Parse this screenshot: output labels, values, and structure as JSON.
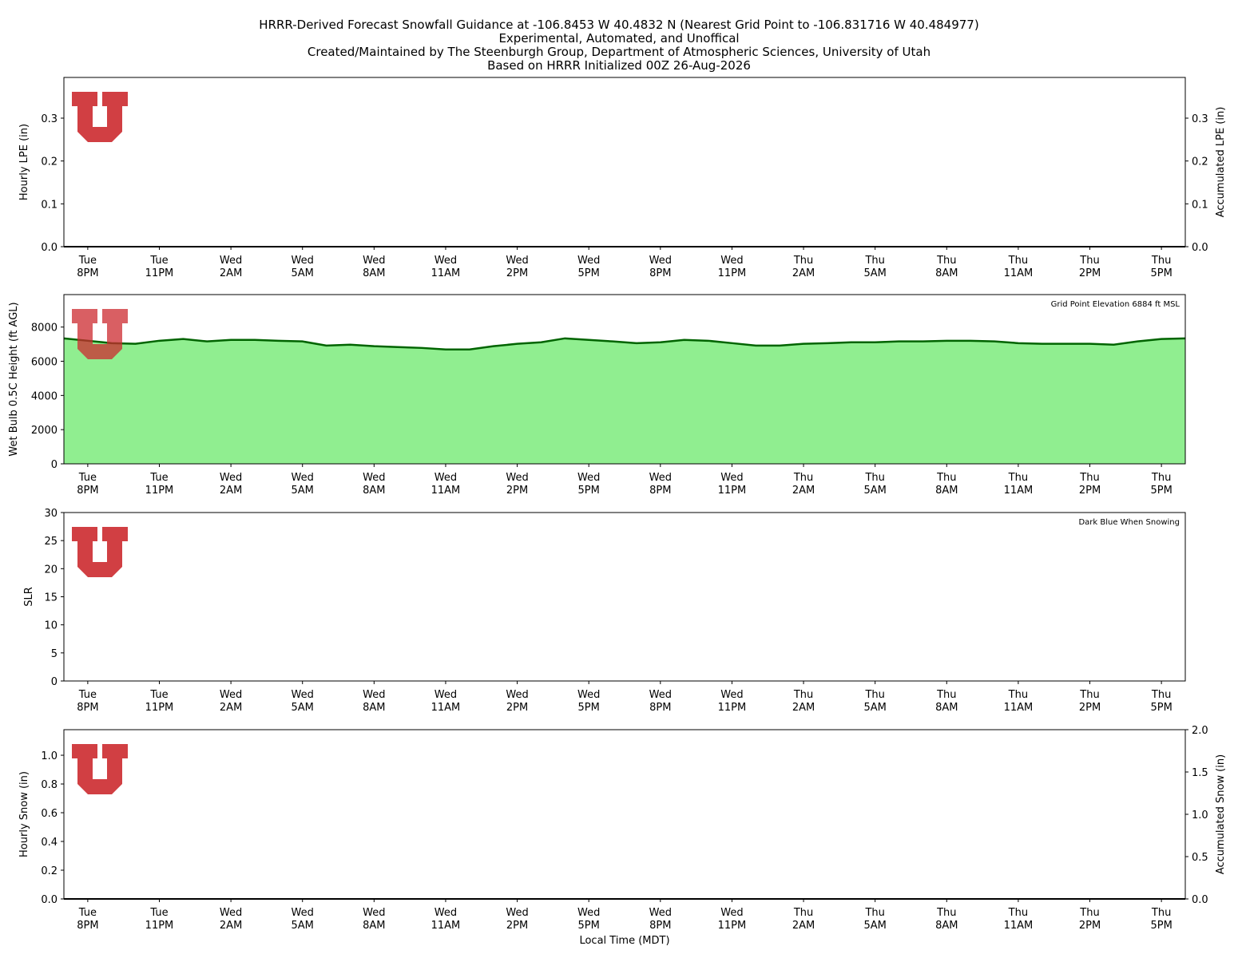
{
  "title": [
    "HRRR-Derived Forecast Snowfall Guidance at -106.8453 W 40.4832 N (Nearest Grid Point to -106.831716 W 40.484977)",
    "Experimental, Automated, and Unoffical",
    "Created/Maintained by The Steenburgh Group, Department of Atmospheric Sciences, University of Utah",
    "Based on HRRR Initialized 00Z 26-Aug-2026"
  ],
  "chart_data": [
    {
      "type": "bar",
      "ylabel": "Hourly LPE (in)",
      "y2label": "Accumulated LPE (in)",
      "categories": [
        null,
        "Tue 8PM",
        null,
        null,
        "Tue 11PM",
        null,
        null,
        "Wed 2AM",
        null,
        null,
        "Wed 5AM",
        null,
        null,
        "Wed 8AM",
        null,
        null,
        "Wed 11AM",
        null,
        null,
        "Wed 2PM",
        null,
        null,
        "Wed 5PM",
        null,
        null,
        "Wed 8PM",
        null,
        null,
        "Wed 11PM",
        null,
        null,
        "Thu 2AM",
        null,
        null,
        "Thu 5AM",
        null,
        null,
        "Thu 8AM",
        null,
        null,
        "Thu 11AM",
        null,
        null,
        "Thu 2PM",
        null,
        null,
        "Thu 5PM",
        null
      ],
      "ylim": [
        0,
        0.395
      ],
      "yticks": [
        {
          "value": 0,
          "label": "0.0"
        },
        {
          "value": 0.1,
          "label": "0.1"
        },
        {
          "value": 0.2,
          "label": "0.2"
        },
        {
          "value": 0.3,
          "label": "0.3"
        }
      ],
      "y2lim": [
        0,
        0.395
      ],
      "y2ticks": [
        {
          "value": 0,
          "label": "0.0"
        },
        {
          "value": 0.1,
          "label": "0.1"
        },
        {
          "value": 0.2,
          "label": "0.2"
        },
        {
          "value": 0.3,
          "label": "0.3"
        }
      ],
      "series": [
        {
          "type": "bar",
          "color": "#1f77b4",
          "values": [
            0,
            0,
            0,
            0,
            0,
            0,
            0,
            0,
            0,
            0,
            0,
            0,
            0,
            0,
            0,
            0,
            0,
            0,
            0,
            0,
            0,
            0,
            0,
            0,
            0,
            0,
            0,
            0,
            0,
            0,
            0,
            0,
            0,
            0,
            0,
            0,
            0,
            0,
            0,
            0,
            0,
            0,
            0,
            0,
            0,
            0,
            0,
            0
          ]
        },
        {
          "type": "line",
          "axis": "y2",
          "color": "#000000",
          "values": [
            0,
            0,
            0,
            0,
            0,
            0,
            0,
            0,
            0,
            0,
            0,
            0,
            0,
            0,
            0,
            0,
            0,
            0,
            0,
            0,
            0,
            0,
            0,
            0,
            0,
            0,
            0,
            0,
            0,
            0,
            0,
            0,
            0,
            0,
            0,
            0,
            0,
            0,
            0,
            0,
            0,
            0,
            0,
            0,
            0,
            0,
            0,
            0
          ]
        }
      ]
    },
    {
      "type": "area",
      "ylabel": "Wet Bulb 0.5C Height (ft AGL)",
      "annotation": "Grid Point Elevation 6884 ft MSL",
      "categories": [
        null,
        "Tue 8PM",
        null,
        null,
        "Tue 11PM",
        null,
        null,
        "Wed 2AM",
        null,
        null,
        "Wed 5AM",
        null,
        null,
        "Wed 8AM",
        null,
        null,
        "Wed 11AM",
        null,
        null,
        "Wed 2PM",
        null,
        null,
        "Wed 5PM",
        null,
        null,
        "Wed 8PM",
        null,
        null,
        "Wed 11PM",
        null,
        null,
        "Thu 2AM",
        null,
        null,
        "Thu 5AM",
        null,
        null,
        "Thu 8AM",
        null,
        null,
        "Thu 11AM",
        null,
        null,
        "Thu 2PM",
        null,
        null,
        "Thu 5PM",
        null
      ],
      "ylim": [
        0,
        9900
      ],
      "yticks": [
        0,
        2000,
        4000,
        6000,
        8000
      ],
      "series": [
        {
          "type": "area",
          "color": "#006400",
          "fill": "#90ee90",
          "values": [
            7340,
            7200,
            7060,
            7020,
            7200,
            7300,
            7160,
            7250,
            7250,
            7200,
            7160,
            6920,
            6970,
            6880,
            6830,
            6780,
            6690,
            6690,
            6880,
            7020,
            7110,
            7340,
            7250,
            7160,
            7060,
            7110,
            7250,
            7200,
            7060,
            6920,
            6920,
            7020,
            7060,
            7110,
            7110,
            7160,
            7160,
            7200,
            7200,
            7160,
            7060,
            7020,
            7020,
            7020,
            6970,
            7160,
            7300,
            7340
          ]
        }
      ]
    },
    {
      "type": "line",
      "ylabel": "SLR",
      "annotation": "Dark Blue When Snowing",
      "categories": [
        null,
        "Tue 8PM",
        null,
        null,
        "Tue 11PM",
        null,
        null,
        "Wed 2AM",
        null,
        null,
        "Wed 5AM",
        null,
        null,
        "Wed 8AM",
        null,
        null,
        "Wed 11AM",
        null,
        null,
        "Wed 2PM",
        null,
        null,
        "Wed 5PM",
        null,
        null,
        "Wed 8PM",
        null,
        null,
        "Wed 11PM",
        null,
        null,
        "Thu 2AM",
        null,
        null,
        "Thu 5AM",
        null,
        null,
        "Thu 8AM",
        null,
        null,
        "Thu 11AM",
        null,
        null,
        "Thu 2PM",
        null,
        null,
        "Thu 5PM",
        null
      ],
      "ylim": [
        0,
        30
      ],
      "yticks": [
        0,
        5,
        10,
        15,
        20,
        25,
        30
      ],
      "series": []
    },
    {
      "type": "bar",
      "ylabel": "Hourly Snow (in)",
      "y2label": "Accumulated Snow (in)",
      "xlabel": "Local Time (MDT)",
      "categories": [
        null,
        "Tue 8PM",
        null,
        null,
        "Tue 11PM",
        null,
        null,
        "Wed 2AM",
        null,
        null,
        "Wed 5AM",
        null,
        null,
        "Wed 8AM",
        null,
        null,
        "Wed 11AM",
        null,
        null,
        "Wed 2PM",
        null,
        null,
        "Wed 5PM",
        null,
        null,
        "Wed 8PM",
        null,
        null,
        "Wed 11PM",
        null,
        null,
        "Thu 2AM",
        null,
        null,
        "Thu 5AM",
        null,
        null,
        "Thu 8AM",
        null,
        null,
        "Thu 11AM",
        null,
        null,
        "Thu 2PM",
        null,
        null,
        "Thu 5PM",
        null
      ],
      "ylim": [
        0,
        1.178
      ],
      "yticks": [
        {
          "value": 0,
          "label": "0.0"
        },
        {
          "value": 0.2,
          "label": "0.2"
        },
        {
          "value": 0.4,
          "label": "0.4"
        },
        {
          "value": 0.6,
          "label": "0.6"
        },
        {
          "value": 0.8,
          "label": "0.8"
        },
        {
          "value": 1,
          "label": "1.0"
        }
      ],
      "y2lim": [
        0,
        2
      ],
      "y2ticks": [
        {
          "value": 0,
          "label": "0.0"
        },
        {
          "value": 0.5,
          "label": "0.5"
        },
        {
          "value": 1,
          "label": "1.0"
        },
        {
          "value": 1.5,
          "label": "1.5"
        },
        {
          "value": 2,
          "label": "2.0"
        }
      ],
      "series": [
        {
          "type": "bar",
          "color": "#00008b",
          "values": [
            0,
            0,
            0,
            0,
            0,
            0,
            0,
            0,
            0,
            0,
            0,
            0,
            0,
            0,
            0,
            0,
            0,
            0,
            0,
            0,
            0,
            0,
            0,
            0,
            0,
            0,
            0,
            0,
            0,
            0,
            0,
            0,
            0,
            0,
            0,
            0,
            0,
            0,
            0,
            0,
            0,
            0,
            0,
            0,
            0,
            0,
            0,
            0
          ]
        },
        {
          "type": "line",
          "axis": "y2",
          "color": "#000000",
          "values": [
            0,
            0,
            0,
            0,
            0,
            0,
            0,
            0,
            0,
            0,
            0,
            0,
            0,
            0,
            0,
            0,
            0,
            0,
            0,
            0,
            0,
            0,
            0,
            0,
            0,
            0,
            0,
            0,
            0,
            0,
            0,
            0,
            0,
            0,
            0,
            0,
            0,
            0,
            0,
            0,
            0,
            0,
            0,
            0,
            0,
            0,
            0,
            0
          ]
        }
      ]
    }
  ]
}
